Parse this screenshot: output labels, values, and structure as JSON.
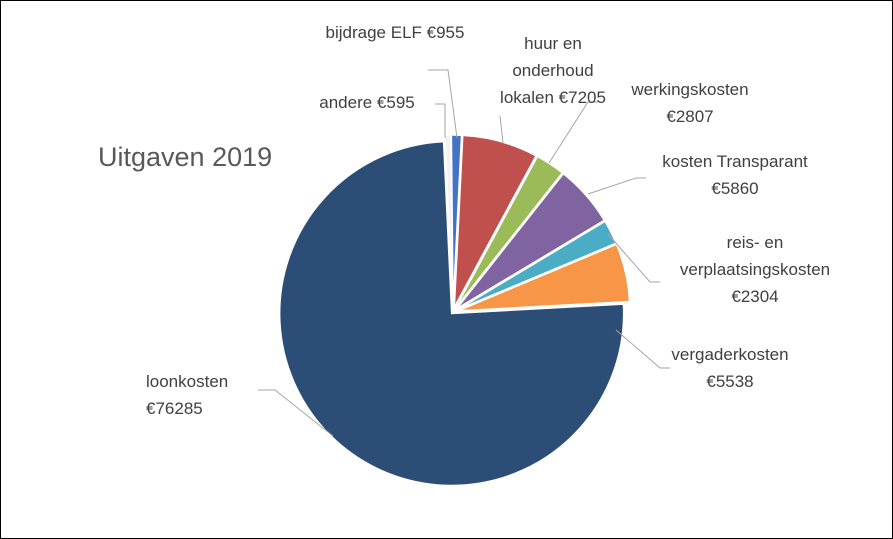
{
  "chart_data": {
    "type": "pie",
    "title": "Uitgaven 2019",
    "categories": [
      "andere",
      "bijdrage ELF",
      "huur en onderhoud lokalen",
      "werkingskosten",
      "kosten Transparant",
      "reis- en verplaatsingskosten",
      "vergaderkosten",
      "loonkosten"
    ],
    "values": [
      595,
      955,
      7205,
      2807,
      5860,
      2304,
      5538,
      76285
    ],
    "value_labels": [
      "€595",
      "€955",
      "€7205",
      "€2807",
      "€5860",
      "€2304",
      "€5538",
      "€76285"
    ],
    "colors": [
      "#f2f2f2",
      "#4472c4",
      "#c0504d",
      "#9bbb59",
      "#8064a2",
      "#4bacc6",
      "#f79646",
      "#2c4d75"
    ]
  }
}
